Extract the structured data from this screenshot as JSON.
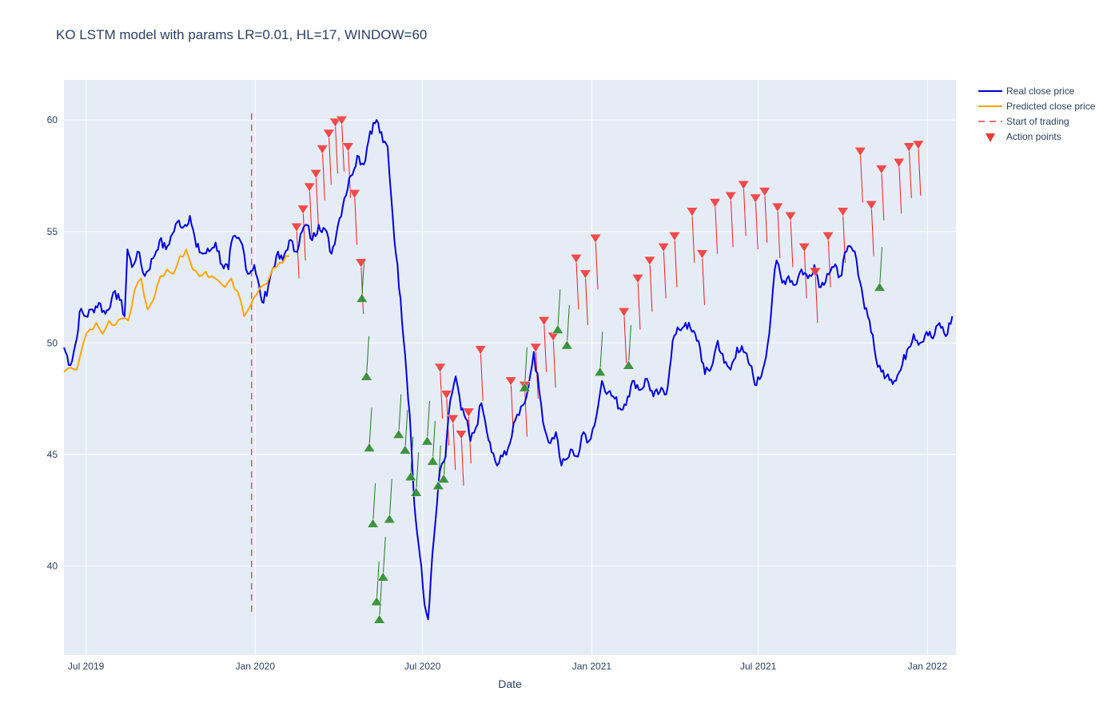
{
  "chart_data": {
    "type": "line",
    "title": "KO LSTM model with params LR=0.01, HL=17, WINDOW=60",
    "xlabel": "Date",
    "ylabel": "",
    "x_range": [
      "2019-06-07",
      "2022-02-01"
    ],
    "ylim": [
      36,
      61.8
    ],
    "x_ticks": [
      {
        "date": "2019-07-01",
        "label": "Jul 2019"
      },
      {
        "date": "2020-01-01",
        "label": "Jan 2020"
      },
      {
        "date": "2020-07-01",
        "label": "Jul 2020"
      },
      {
        "date": "2021-01-01",
        "label": "Jan 2021"
      },
      {
        "date": "2021-07-01",
        "label": "Jul 2021"
      },
      {
        "date": "2022-01-01",
        "label": "Jan 2022"
      }
    ],
    "y_ticks": [
      40,
      45,
      50,
      55,
      60
    ],
    "grid": true,
    "legend_position": "top-right",
    "trading_start": {
      "date": "2019-12-28",
      "y_range": [
        37.8,
        60.3
      ]
    },
    "series": [
      {
        "name": "Real close price",
        "color": "#0000dd",
        "points": [
          [
            "2019-06-07",
            49.8
          ],
          [
            "2019-06-14",
            49.0
          ],
          [
            "2019-06-21",
            50.2
          ],
          [
            "2019-06-24",
            51.4
          ],
          [
            "2019-07-01",
            51.2
          ],
          [
            "2019-07-08",
            51.5
          ],
          [
            "2019-07-15",
            51.8
          ],
          [
            "2019-07-22",
            51.3
          ],
          [
            "2019-07-29",
            52.0
          ],
          [
            "2019-08-05",
            52.2
          ],
          [
            "2019-08-12",
            51.2
          ],
          [
            "2019-08-15",
            54.2
          ],
          [
            "2019-08-20",
            53.4
          ],
          [
            "2019-08-26",
            54.1
          ],
          [
            "2019-09-03",
            53.0
          ],
          [
            "2019-09-12",
            53.8
          ],
          [
            "2019-09-19",
            54.6
          ],
          [
            "2019-09-26",
            54.2
          ],
          [
            "2019-10-03",
            54.9
          ],
          [
            "2019-10-10",
            55.5
          ],
          [
            "2019-10-15",
            55.2
          ],
          [
            "2019-10-22",
            55.7
          ],
          [
            "2019-10-29",
            54.3
          ],
          [
            "2019-11-05",
            54.0
          ],
          [
            "2019-11-12",
            54.1
          ],
          [
            "2019-11-19",
            54.5
          ],
          [
            "2019-11-26",
            53.5
          ],
          [
            "2019-12-03",
            53.3
          ],
          [
            "2019-12-06",
            54.5
          ],
          [
            "2019-12-12",
            54.7
          ],
          [
            "2019-12-18",
            54.4
          ],
          [
            "2019-12-24",
            53.1
          ],
          [
            "2019-12-31",
            53.5
          ],
          [
            "2020-01-07",
            52.1
          ],
          [
            "2020-01-10",
            51.8
          ],
          [
            "2020-01-17",
            52.9
          ],
          [
            "2020-01-24",
            53.9
          ],
          [
            "2020-01-31",
            53.7
          ],
          [
            "2020-02-07",
            54.6
          ],
          [
            "2020-02-14",
            54.1
          ],
          [
            "2020-02-21",
            55.0
          ],
          [
            "2020-02-26",
            55.3
          ],
          [
            "2020-03-03",
            54.6
          ],
          [
            "2020-03-10",
            55.3
          ],
          [
            "2020-03-17",
            55.1
          ],
          [
            "2020-03-24",
            54.0
          ],
          [
            "2020-03-31",
            55.3
          ],
          [
            "2020-04-07",
            56.5
          ],
          [
            "2020-04-14",
            57.5
          ],
          [
            "2020-04-21",
            58.4
          ],
          [
            "2020-04-28",
            58.0
          ],
          [
            "2020-05-05",
            59.5
          ],
          [
            "2020-05-12",
            60.0
          ],
          [
            "2020-05-19",
            59.0
          ],
          [
            "2020-05-24",
            58.8
          ],
          [
            "2020-05-28",
            56.5
          ],
          [
            "2020-06-02",
            54.0
          ],
          [
            "2020-06-07",
            52.0
          ],
          [
            "2020-06-12",
            49.5
          ],
          [
            "2020-06-17",
            46.8
          ],
          [
            "2020-06-22",
            42.8
          ],
          [
            "2020-06-25",
            41.5
          ],
          [
            "2020-06-28",
            40.5
          ],
          [
            "2020-07-03",
            38.3
          ],
          [
            "2020-07-07",
            37.6
          ],
          [
            "2020-07-10",
            39.5
          ],
          [
            "2020-07-15",
            42.0
          ],
          [
            "2020-07-20",
            44.3
          ],
          [
            "2020-07-26",
            44.9
          ],
          [
            "2020-07-31",
            47.4
          ],
          [
            "2020-08-06",
            48.5
          ],
          [
            "2020-08-12",
            47.0
          ],
          [
            "2020-08-17",
            46.6
          ],
          [
            "2020-08-22",
            45.6
          ],
          [
            "2020-08-28",
            46.2
          ],
          [
            "2020-09-03",
            47.3
          ],
          [
            "2020-09-09",
            46.0
          ],
          [
            "2020-09-14",
            45.1
          ],
          [
            "2020-09-20",
            44.5
          ],
          [
            "2020-09-26",
            44.9
          ],
          [
            "2020-10-04",
            45.5
          ],
          [
            "2020-10-12",
            46.8
          ],
          [
            "2020-10-18",
            47.2
          ],
          [
            "2020-10-24",
            48.0
          ],
          [
            "2020-10-30",
            49.6
          ],
          [
            "2020-11-05",
            47.8
          ],
          [
            "2020-11-11",
            46.1
          ],
          [
            "2020-11-17",
            45.5
          ],
          [
            "2020-11-23",
            46.0
          ],
          [
            "2020-11-29",
            44.5
          ],
          [
            "2020-12-05",
            44.8
          ],
          [
            "2020-12-11",
            45.2
          ],
          [
            "2020-12-17",
            44.9
          ],
          [
            "2020-12-23",
            46.0
          ],
          [
            "2020-12-29",
            45.6
          ],
          [
            "2021-01-06",
            46.7
          ],
          [
            "2021-01-12",
            48.3
          ],
          [
            "2021-01-19",
            47.8
          ],
          [
            "2021-01-26",
            47.5
          ],
          [
            "2021-02-02",
            47.0
          ],
          [
            "2021-02-09",
            47.6
          ],
          [
            "2021-02-16",
            48.3
          ],
          [
            "2021-02-23",
            47.9
          ],
          [
            "2021-03-02",
            48.4
          ],
          [
            "2021-03-09",
            47.6
          ],
          [
            "2021-03-16",
            47.8
          ],
          [
            "2021-03-23",
            47.7
          ],
          [
            "2021-03-30",
            50.1
          ],
          [
            "2021-04-06",
            50.6
          ],
          [
            "2021-04-13",
            50.9
          ],
          [
            "2021-04-20",
            50.5
          ],
          [
            "2021-04-27",
            50.1
          ],
          [
            "2021-05-04",
            48.6
          ],
          [
            "2021-05-11",
            48.9
          ],
          [
            "2021-05-18",
            50.1
          ],
          [
            "2021-05-25",
            49.1
          ],
          [
            "2021-06-01",
            48.8
          ],
          [
            "2021-06-08",
            49.8
          ],
          [
            "2021-06-15",
            49.6
          ],
          [
            "2021-06-22",
            49.0
          ],
          [
            "2021-06-29",
            48.1
          ],
          [
            "2021-07-06",
            48.8
          ],
          [
            "2021-07-13",
            50.4
          ],
          [
            "2021-07-17",
            52.4
          ],
          [
            "2021-07-21",
            53.7
          ],
          [
            "2021-07-27",
            52.7
          ],
          [
            "2021-08-03",
            53.0
          ],
          [
            "2021-08-10",
            52.6
          ],
          [
            "2021-08-17",
            53.3
          ],
          [
            "2021-08-24",
            52.9
          ],
          [
            "2021-08-31",
            53.5
          ],
          [
            "2021-09-07",
            52.5
          ],
          [
            "2021-09-14",
            53.1
          ],
          [
            "2021-09-21",
            53.4
          ],
          [
            "2021-09-28",
            53.0
          ],
          [
            "2021-10-05",
            54.1
          ],
          [
            "2021-10-10",
            54.3
          ],
          [
            "2021-10-16",
            53.7
          ],
          [
            "2021-10-23",
            52.0
          ],
          [
            "2021-10-30",
            51.0
          ],
          [
            "2021-11-06",
            49.3
          ],
          [
            "2021-11-12",
            48.7
          ],
          [
            "2021-11-19",
            48.6
          ],
          [
            "2021-11-26",
            48.3
          ],
          [
            "2021-12-03",
            48.8
          ],
          [
            "2021-12-10",
            49.7
          ],
          [
            "2021-12-17",
            50.4
          ],
          [
            "2021-12-24",
            50.0
          ],
          [
            "2021-12-31",
            50.5
          ],
          [
            "2022-01-07",
            50.2
          ],
          [
            "2022-01-14",
            50.9
          ],
          [
            "2022-01-21",
            50.3
          ],
          [
            "2022-01-28",
            51.2
          ]
        ]
      },
      {
        "name": "Predicted close price",
        "color": "#ffa500",
        "points": [
          [
            "2019-06-07",
            48.7
          ],
          [
            "2019-06-14",
            48.9
          ],
          [
            "2019-06-21",
            48.8
          ],
          [
            "2019-06-28",
            50.0
          ],
          [
            "2019-07-05",
            50.6
          ],
          [
            "2019-07-12",
            50.9
          ],
          [
            "2019-07-19",
            50.4
          ],
          [
            "2019-07-26",
            51.0
          ],
          [
            "2019-08-02",
            50.8
          ],
          [
            "2019-08-09",
            51.1
          ],
          [
            "2019-08-16",
            51.0
          ],
          [
            "2019-08-23",
            52.4
          ],
          [
            "2019-08-30",
            52.9
          ],
          [
            "2019-09-06",
            51.5
          ],
          [
            "2019-09-13",
            52.0
          ],
          [
            "2019-09-20",
            53.0
          ],
          [
            "2019-09-27",
            53.3
          ],
          [
            "2019-10-04",
            53.1
          ],
          [
            "2019-10-11",
            53.9
          ],
          [
            "2019-10-18",
            54.2
          ],
          [
            "2019-10-25",
            53.3
          ],
          [
            "2019-11-01",
            53.0
          ],
          [
            "2019-11-08",
            53.2
          ],
          [
            "2019-11-15",
            53.0
          ],
          [
            "2019-11-22",
            52.8
          ],
          [
            "2019-11-29",
            52.5
          ],
          [
            "2019-12-06",
            52.9
          ],
          [
            "2019-12-13",
            52.3
          ],
          [
            "2019-12-20",
            51.2
          ],
          [
            "2019-12-27",
            51.7
          ],
          [
            "2020-01-03",
            52.2
          ],
          [
            "2020-01-10",
            52.6
          ],
          [
            "2020-01-17",
            53.0
          ],
          [
            "2020-01-24",
            53.4
          ],
          [
            "2020-01-31",
            53.6
          ],
          [
            "2020-02-07",
            53.9
          ]
        ]
      }
    ],
    "action_points": {
      "name": "Action points",
      "sell_color": "#ef3b3b",
      "buy_color": "#2e8b2e",
      "sell": [
        [
          "2020-02-15",
          55.2
        ],
        [
          "2020-02-22",
          56.0
        ],
        [
          "2020-02-29",
          57.0
        ],
        [
          "2020-03-07",
          57.6
        ],
        [
          "2020-03-14",
          58.7
        ],
        [
          "2020-03-21",
          59.4
        ],
        [
          "2020-03-28",
          59.9
        ],
        [
          "2020-04-04",
          60.0
        ],
        [
          "2020-04-11",
          58.8
        ],
        [
          "2020-04-18",
          56.7
        ],
        [
          "2020-04-25",
          53.6
        ],
        [
          "2020-07-20",
          48.9
        ],
        [
          "2020-07-27",
          47.7
        ],
        [
          "2020-08-03",
          46.6
        ],
        [
          "2020-08-12",
          45.9
        ],
        [
          "2020-08-20",
          46.9
        ],
        [
          "2020-09-02",
          49.7
        ],
        [
          "2020-10-05",
          48.3
        ],
        [
          "2020-10-20",
          48.1
        ],
        [
          "2020-11-01",
          49.8
        ],
        [
          "2020-11-10",
          51.0
        ],
        [
          "2020-11-20",
          50.3
        ],
        [
          "2020-12-15",
          53.8
        ],
        [
          "2020-12-25",
          53.1
        ],
        [
          "2021-01-05",
          54.7
        ],
        [
          "2021-02-05",
          51.4
        ],
        [
          "2021-02-20",
          52.9
        ],
        [
          "2021-03-05",
          53.7
        ],
        [
          "2021-03-20",
          54.3
        ],
        [
          "2021-04-01",
          54.8
        ],
        [
          "2021-04-20",
          55.9
        ],
        [
          "2021-05-01",
          54.0
        ],
        [
          "2021-05-15",
          56.3
        ],
        [
          "2021-06-01",
          56.6
        ],
        [
          "2021-06-15",
          57.1
        ],
        [
          "2021-06-28",
          56.5
        ],
        [
          "2021-07-08",
          56.8
        ],
        [
          "2021-07-22",
          56.1
        ],
        [
          "2021-08-05",
          55.7
        ],
        [
          "2021-08-20",
          54.3
        ],
        [
          "2021-09-01",
          53.2
        ],
        [
          "2021-09-15",
          54.8
        ],
        [
          "2021-10-01",
          55.9
        ],
        [
          "2021-10-20",
          58.6
        ],
        [
          "2021-11-01",
          56.2
        ],
        [
          "2021-11-12",
          57.8
        ],
        [
          "2021-12-01",
          58.1
        ],
        [
          "2021-12-12",
          58.8
        ],
        [
          "2021-12-22",
          58.9
        ]
      ],
      "buy": [
        [
          "2020-04-26",
          52.0
        ],
        [
          "2020-05-01",
          48.5
        ],
        [
          "2020-05-04",
          45.3
        ],
        [
          "2020-05-08",
          41.9
        ],
        [
          "2020-05-12",
          38.4
        ],
        [
          "2020-05-15",
          37.6
        ],
        [
          "2020-05-19",
          39.5
        ],
        [
          "2020-05-26",
          42.1
        ],
        [
          "2020-06-05",
          45.9
        ],
        [
          "2020-06-12",
          45.2
        ],
        [
          "2020-06-18",
          44.0
        ],
        [
          "2020-06-24",
          43.3
        ],
        [
          "2020-07-06",
          45.6
        ],
        [
          "2020-07-12",
          44.7
        ],
        [
          "2020-07-18",
          43.6
        ],
        [
          "2020-07-24",
          43.9
        ],
        [
          "2020-10-20",
          48.0
        ],
        [
          "2020-11-25",
          50.6
        ],
        [
          "2020-12-05",
          49.9
        ],
        [
          "2021-01-10",
          48.7
        ],
        [
          "2021-02-10",
          49.0
        ],
        [
          "2021-11-10",
          52.5
        ]
      ]
    }
  }
}
